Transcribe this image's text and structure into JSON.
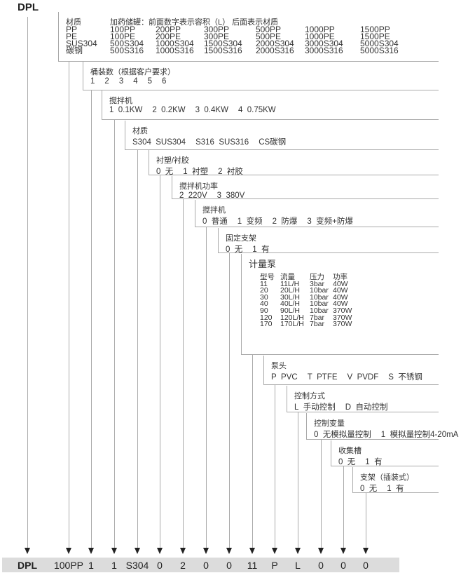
{
  "header": {
    "model": "DPL"
  },
  "boxes": [
    {
      "title": "材质",
      "subtitle": "加药储罐：前面数字表示容积（L） 后面表示材质",
      "table": [
        [
          "PP",
          "100PP",
          "200PP",
          "300PP",
          "500PP",
          "1000PP",
          "1500PP"
        ],
        [
          "PE",
          "100PE",
          "200PE",
          "300PE",
          "500PE",
          "1000PE",
          "1500PE"
        ],
        [
          "SUS304",
          "500S304",
          "1000S304",
          "1500S304",
          "2000S304",
          "3000S304",
          "5000S304"
        ],
        [
          "碳钢",
          "500S316",
          "1000S316",
          "1500S316",
          "2000S316",
          "3000S316",
          "5000S316"
        ]
      ]
    },
    {
      "title": "桶装数（根据客户要求）",
      "options": [
        "1",
        "2",
        "3",
        "4",
        "5",
        "6"
      ]
    },
    {
      "title": "搅拌机",
      "options": [
        "1  0.1KW",
        "2  0.2KW",
        "3  0.4KW",
        "4  0.75KW"
      ]
    },
    {
      "title": "材质",
      "options": [
        "S304  SUS304",
        "S316  SUS316",
        "CS碳钢"
      ]
    },
    {
      "title": "衬塑/衬胶",
      "options": [
        "0  无",
        "1  衬塑",
        "2  衬胶"
      ]
    },
    {
      "title": "搅拌机功率",
      "options": [
        "2  220V",
        "3  380V"
      ]
    },
    {
      "title": "搅拌机",
      "options": [
        "0  普通",
        "1  变频",
        "2  防爆",
        "3  变频+防爆"
      ]
    },
    {
      "title": "固定支架",
      "options": [
        "0  无",
        "1  有"
      ]
    },
    {
      "title": "计量泵",
      "table": [
        [
          "型号",
          "流量",
          "压力",
          "功率"
        ],
        [
          "11",
          "11L/H",
          "3bar",
          "40W"
        ],
        [
          "20",
          "20L/H",
          "10bar",
          "40W"
        ],
        [
          "30",
          "30L/H",
          "10bar",
          "40W"
        ],
        [
          "40",
          "40L/H",
          "10bar",
          "40W"
        ],
        [
          "90",
          "90L/H",
          "10bar",
          "370W"
        ],
        [
          "120",
          "120L/H",
          "7bar",
          "370W"
        ],
        [
          "170",
          "170L/H",
          "7bar",
          "370W"
        ]
      ]
    },
    {
      "title": "泵头",
      "options": [
        "P  PVC",
        "T  PTFE",
        "V  PVDF",
        "S  不锈钢"
      ]
    },
    {
      "title": "控制方式",
      "options": [
        "L  手动控制",
        "D  自动控制"
      ]
    },
    {
      "title": "控制变量",
      "options": [
        "0  无模拟量控制",
        "1  模拟量控制4-20mA"
      ]
    },
    {
      "title": "收集槽",
      "options": [
        "0  无",
        "1  有"
      ]
    },
    {
      "title": "支架（插装式）",
      "options": [
        "0  无",
        "1  有"
      ]
    }
  ],
  "code": [
    "DPL",
    "100PP",
    "1",
    "1",
    "S304",
    "0",
    "2",
    "0",
    "0",
    "11",
    "P",
    "L",
    "0",
    "0",
    "0"
  ]
}
